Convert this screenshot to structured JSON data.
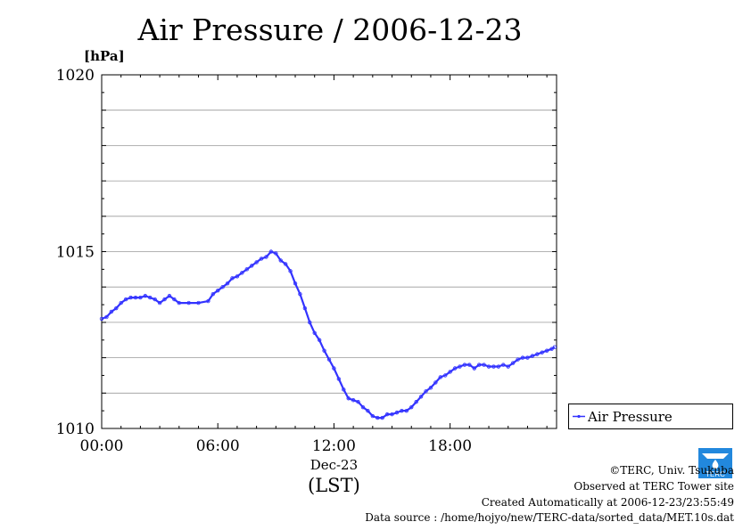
{
  "chart_data": {
    "type": "line",
    "title": "Air Pressure / 2006-12-23",
    "ylabel": "[hPa]",
    "xlabel": "(LST)",
    "date_label": "Dec-23",
    "x_ticks": [
      "00:00",
      "06:00",
      "12:00",
      "18:00"
    ],
    "y_ticks": [
      "1010",
      "1015",
      "1020"
    ],
    "ylim": [
      1010,
      1020
    ],
    "xlim_hours": [
      0,
      23.5
    ],
    "grid": true,
    "legend": {
      "position": "right",
      "entries": [
        "Air Pressure"
      ]
    },
    "series": [
      {
        "name": "Air Pressure",
        "color": "#3333ff",
        "x_hours": [
          0,
          0.25,
          0.5,
          0.75,
          1.0,
          1.25,
          1.5,
          1.75,
          2.0,
          2.25,
          2.5,
          2.75,
          3.0,
          3.25,
          3.5,
          3.75,
          4.0,
          4.5,
          5.0,
          5.5,
          5.75,
          6.0,
          6.25,
          6.5,
          6.75,
          7.0,
          7.25,
          7.5,
          7.75,
          8.0,
          8.25,
          8.5,
          8.75,
          9.0,
          9.25,
          9.5,
          9.75,
          10.0,
          10.25,
          10.5,
          10.75,
          11.0,
          11.25,
          11.5,
          11.75,
          12.0,
          12.25,
          12.5,
          12.75,
          13.0,
          13.25,
          13.5,
          13.75,
          14.0,
          14.25,
          14.5,
          14.75,
          15.0,
          15.25,
          15.5,
          15.75,
          16.0,
          16.25,
          16.5,
          16.75,
          17.0,
          17.25,
          17.5,
          17.75,
          18.0,
          18.25,
          18.5,
          18.75,
          19.0,
          19.25,
          19.5,
          19.75,
          20.0,
          20.25,
          20.5,
          20.75,
          21.0,
          21.25,
          21.5,
          21.75,
          22.0,
          22.25,
          22.5,
          22.75,
          23.0,
          23.25,
          23.4
        ],
        "values": [
          1013.1,
          1013.15,
          1013.3,
          1013.4,
          1013.55,
          1013.65,
          1013.7,
          1013.7,
          1013.7,
          1013.75,
          1013.7,
          1013.65,
          1013.55,
          1013.65,
          1013.75,
          1013.65,
          1013.55,
          1013.55,
          1013.55,
          1013.6,
          1013.8,
          1013.9,
          1014.0,
          1014.1,
          1014.25,
          1014.3,
          1014.4,
          1014.5,
          1014.6,
          1014.7,
          1014.8,
          1014.85,
          1015.0,
          1014.95,
          1014.75,
          1014.65,
          1014.45,
          1014.1,
          1013.8,
          1013.4,
          1013.0,
          1012.7,
          1012.5,
          1012.2,
          1011.95,
          1011.7,
          1011.4,
          1011.1,
          1010.85,
          1010.8,
          1010.75,
          1010.6,
          1010.5,
          1010.35,
          1010.3,
          1010.3,
          1010.4,
          1010.4,
          1010.45,
          1010.5,
          1010.5,
          1010.6,
          1010.75,
          1010.9,
          1011.05,
          1011.15,
          1011.3,
          1011.45,
          1011.5,
          1011.6,
          1011.7,
          1011.75,
          1011.8,
          1011.8,
          1011.7,
          1011.8,
          1011.8,
          1011.75,
          1011.75,
          1011.75,
          1011.8,
          1011.75,
          1011.85,
          1011.95,
          1012.0,
          1012.0,
          1012.05,
          1012.1,
          1012.15,
          1012.2,
          1012.25,
          1012.3
        ]
      }
    ]
  },
  "footer": {
    "credit": "©TERC, Univ. Tsukuba",
    "observed": "Observed at TERC Tower site",
    "created": "Created Automatically at 2006-12-23/23:55:49",
    "source": "Data source : /home/hojyo/new/TERC-data/sorted_data/MET.10s.dat"
  },
  "logo": {
    "text": "TERC",
    "color": "#2288dd"
  }
}
